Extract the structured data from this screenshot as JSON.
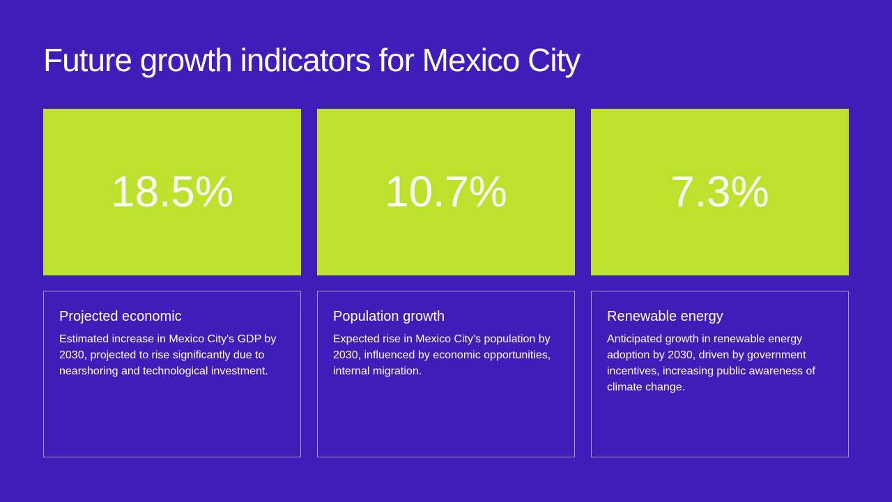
{
  "slide": {
    "title": "Future growth indicators for Mexico City"
  },
  "indicators": [
    {
      "value": "18.5%",
      "heading": "Projected economic",
      "description": "Estimated increase in Mexico City's GDP by 2030, projected to rise significantly due to nearshoring and technological investment."
    },
    {
      "value": "10.7%",
      "heading": "Population growth",
      "description": "Expected rise in Mexico City's population by 2030, influenced by economic opportunities, internal migration."
    },
    {
      "value": "7.3%",
      "heading": "Renewable energy",
      "description": "Anticipated growth in renewable energy adoption by 2030, driven by government incentives, increasing public awareness of climate change."
    }
  ],
  "colors": {
    "background": "#3f1db8",
    "tile": "#bde22e",
    "text": "#ffffff",
    "card_border": "#a79ad6"
  }
}
